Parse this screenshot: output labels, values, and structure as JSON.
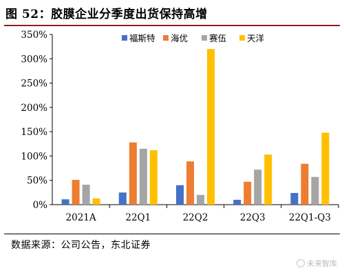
{
  "figure": {
    "title": "图 52：胶膜企业分季度出货保持高增",
    "source": "数据来源：公司公告，东北证券",
    "watermark": "未来智库"
  },
  "chart_data": {
    "type": "bar",
    "categories": [
      "2021A",
      "22Q1",
      "22Q2",
      "22Q3",
      "22Q1-Q3"
    ],
    "series": [
      {
        "name": "福斯特",
        "color": "#4472c4",
        "values": [
          11,
          25,
          40,
          10,
          24
        ]
      },
      {
        "name": "海优",
        "color": "#ed7d31",
        "values": [
          51,
          128,
          89,
          47,
          84
        ]
      },
      {
        "name": "赛伍",
        "color": "#a5a5a5",
        "values": [
          41,
          115,
          20,
          72,
          57
        ]
      },
      {
        "name": "天洋",
        "color": "#ffc000",
        "values": [
          13,
          112,
          320,
          103,
          148
        ]
      }
    ],
    "ylim": [
      0,
      350
    ],
    "yticks": [
      "0%",
      "50%",
      "100%",
      "150%",
      "200%",
      "250%",
      "300%",
      "350%"
    ],
    "legend_position": "top-center",
    "grid": false
  }
}
